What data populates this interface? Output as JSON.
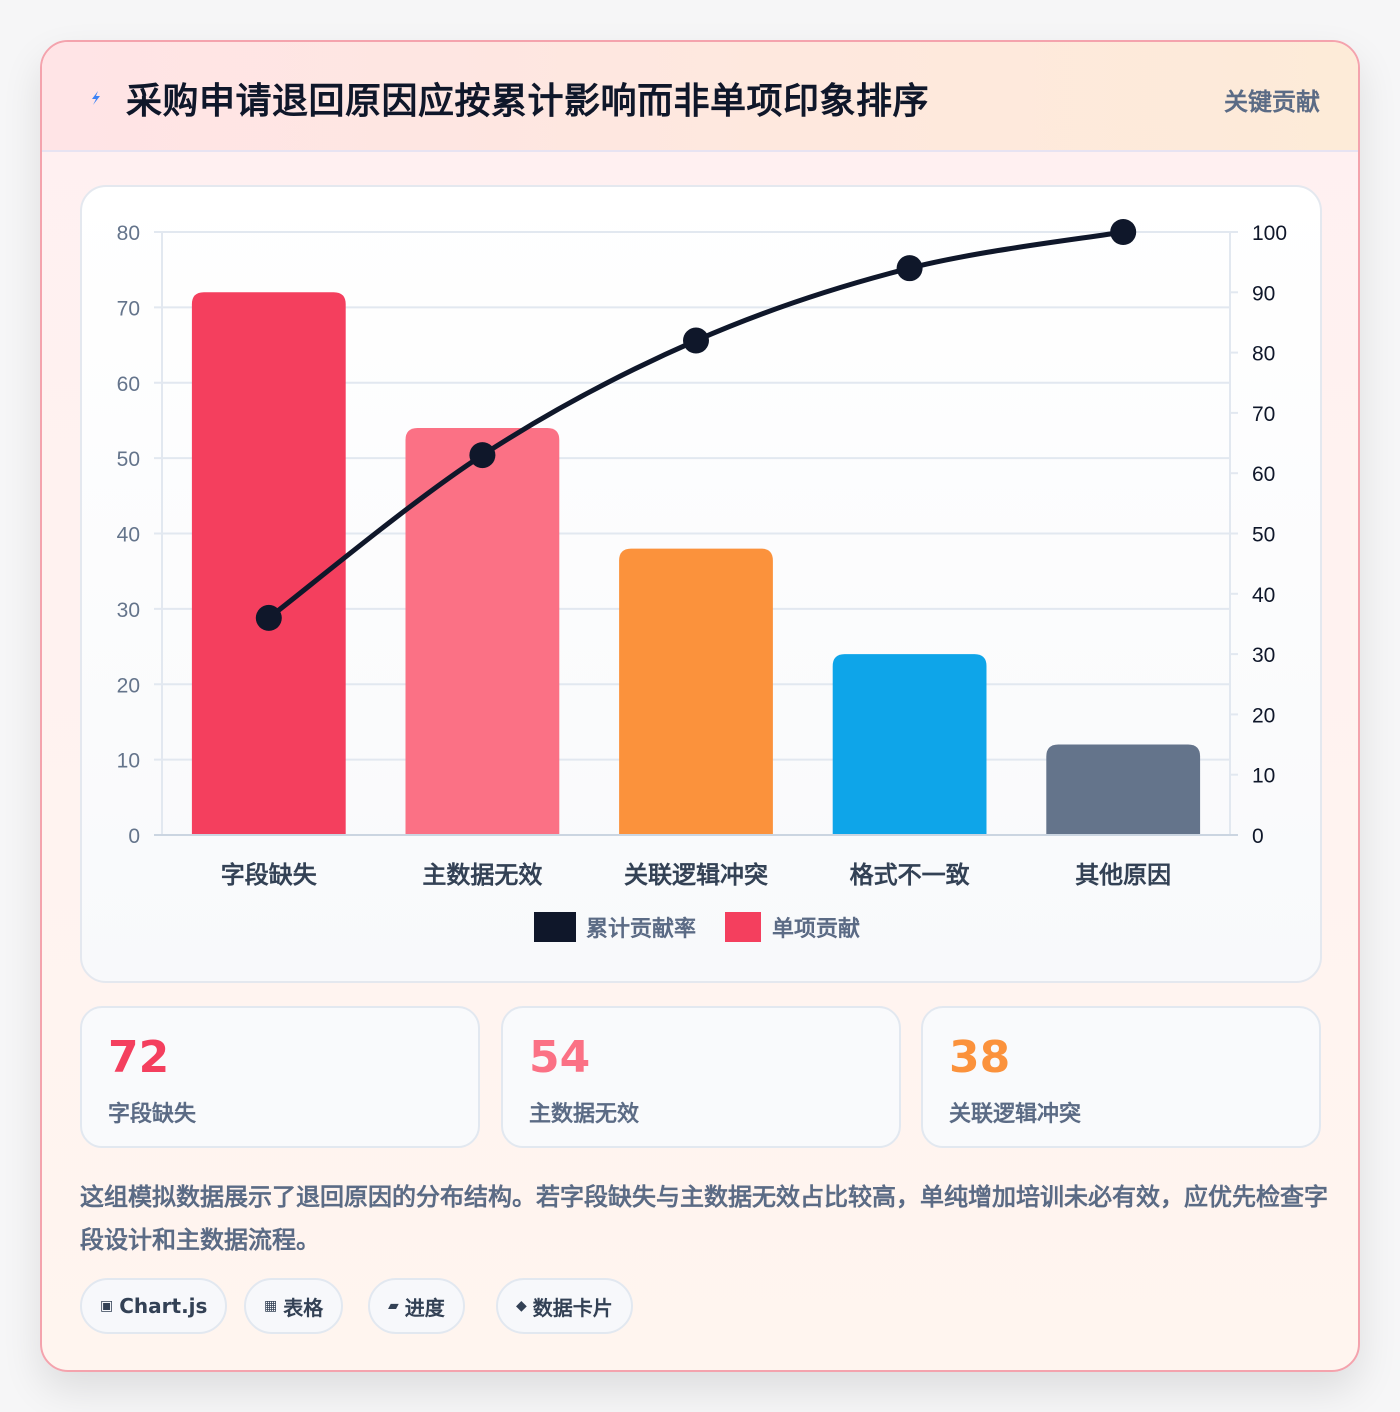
{
  "header": {
    "icon": "lightning-bolt-icon",
    "title": "采购申请退回原因应按累计影响而非单项印象排序",
    "badge": "关键贡献"
  },
  "chart_data": {
    "type": "bar",
    "categories": [
      "字段缺失",
      "主数据无效",
      "关联逻辑冲突",
      "格式不一致",
      "其他原因"
    ],
    "series": [
      {
        "name": "单项贡献",
        "type": "bar",
        "axis": "left",
        "values": [
          72,
          54,
          38,
          24,
          12
        ],
        "colors": [
          "#f43f5e",
          "#fb7185",
          "#fb923c",
          "#0ea5e9",
          "#64748b"
        ]
      },
      {
        "name": "累计贡献率",
        "type": "line",
        "axis": "right",
        "values": [
          36,
          63,
          82,
          94,
          100
        ],
        "color": "#0f172a"
      }
    ],
    "y_left": {
      "min": 0,
      "max": 80,
      "step": 10
    },
    "y_right": {
      "min": 0,
      "max": 100,
      "step": 10
    },
    "legend": [
      "累计贡献率",
      "单项贡献"
    ],
    "legend_position": "bottom",
    "grid": true
  },
  "stats": [
    {
      "value": "72",
      "label": "字段缺失",
      "color": "#f43f5e"
    },
    {
      "value": "54",
      "label": "主数据无效",
      "color": "#fb7185"
    },
    {
      "value": "38",
      "label": "关联逻辑冲突",
      "color": "#fb923c"
    }
  ],
  "description": "这组模拟数据展示了退回原因的分布结构。若字段缺失与主数据无效占比较高，单纯增加培训未必有效，应优先检查字段设计和主数据流程。",
  "tags": [
    {
      "icon": "▣",
      "label": "Chart.js"
    },
    {
      "icon": "▦",
      "label": "表格"
    },
    {
      "icon": "▰",
      "label": "进度"
    },
    {
      "icon": "◆",
      "label": "数据卡片"
    }
  ]
}
